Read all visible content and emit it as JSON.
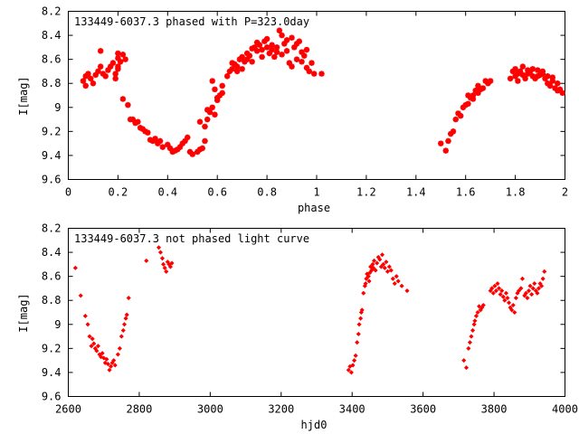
{
  "chart_data": [
    {
      "type": "scatter",
      "title": "133449-6037.3 phased with P=323.0day",
      "xlabel": "phase",
      "ylabel": "I[mag]",
      "xlim": [
        0,
        2
      ],
      "ylim": [
        9.6,
        8.2
      ],
      "y_inverted": true,
      "grid": false,
      "marker": "star",
      "color": "#ff0000",
      "x_ticks": [
        "0",
        "0.2",
        "0.4",
        "0.6",
        "0.8",
        "1",
        "1.2",
        "1.4",
        "1.6",
        "1.8",
        "2"
      ],
      "y_ticks": [
        "8.2",
        "8.4",
        "8.6",
        "8.8",
        "9",
        "9.2",
        "9.4",
        "9.6"
      ],
      "x_tick_values": [
        0,
        0.2,
        0.4,
        0.6,
        0.8,
        1,
        1.2,
        1.4,
        1.6,
        1.8,
        2
      ],
      "y_tick_values": [
        8.2,
        8.4,
        8.6,
        8.8,
        9,
        9.2,
        9.4,
        9.6
      ],
      "points": [
        [
          0.06,
          8.78
        ],
        [
          0.07,
          8.74
        ],
        [
          0.07,
          8.82
        ],
        [
          0.08,
          8.72
        ],
        [
          0.09,
          8.76
        ],
        [
          0.1,
          8.8
        ],
        [
          0.11,
          8.73
        ],
        [
          0.12,
          8.7
        ],
        [
          0.13,
          8.66
        ],
        [
          0.13,
          8.53
        ],
        [
          0.14,
          8.72
        ],
        [
          0.15,
          8.74
        ],
        [
          0.16,
          8.69
        ],
        [
          0.17,
          8.66
        ],
        [
          0.18,
          8.63
        ],
        [
          0.19,
          8.72
        ],
        [
          0.19,
          8.76
        ],
        [
          0.2,
          8.68
        ],
        [
          0.21,
          8.62
        ],
        [
          0.22,
          8.56
        ],
        [
          0.23,
          8.6
        ],
        [
          0.2,
          8.55
        ],
        [
          0.2,
          8.59
        ],
        [
          0.2,
          8.66
        ],
        [
          0.22,
          8.93
        ],
        [
          0.24,
          8.98
        ],
        [
          0.25,
          9.1
        ],
        [
          0.26,
          9.1
        ],
        [
          0.27,
          9.13
        ],
        [
          0.28,
          9.12
        ],
        [
          0.29,
          9.17
        ],
        [
          0.3,
          9.18
        ],
        [
          0.31,
          9.2
        ],
        [
          0.32,
          9.21
        ],
        [
          0.33,
          9.27
        ],
        [
          0.34,
          9.28
        ],
        [
          0.35,
          9.26
        ],
        [
          0.36,
          9.3
        ],
        [
          0.37,
          9.28
        ],
        [
          0.38,
          9.33
        ],
        [
          0.4,
          9.31
        ],
        [
          0.41,
          9.34
        ],
        [
          0.42,
          9.37
        ],
        [
          0.43,
          9.36
        ],
        [
          0.44,
          9.35
        ],
        [
          0.45,
          9.33
        ],
        [
          0.46,
          9.3
        ],
        [
          0.47,
          9.28
        ],
        [
          0.48,
          9.25
        ],
        [
          0.49,
          9.37
        ],
        [
          0.5,
          9.39
        ],
        [
          0.52,
          9.37
        ],
        [
          0.53,
          9.35
        ],
        [
          0.54,
          9.34
        ],
        [
          0.55,
          9.28
        ],
        [
          0.56,
          9.1
        ],
        [
          0.57,
          9.04
        ],
        [
          0.58,
          9.0
        ],
        [
          0.59,
          9.06
        ],
        [
          0.6,
          8.92
        ],
        [
          0.61,
          8.9
        ],
        [
          0.62,
          8.88
        ],
        [
          0.53,
          9.12
        ],
        [
          0.55,
          9.16
        ],
        [
          0.56,
          9.02
        ],
        [
          0.58,
          8.78
        ],
        [
          0.59,
          8.85
        ],
        [
          0.6,
          8.94
        ],
        [
          0.62,
          8.82
        ],
        [
          0.64,
          8.74
        ],
        [
          0.65,
          8.7
        ],
        [
          0.66,
          8.68
        ],
        [
          0.67,
          8.64
        ],
        [
          0.68,
          8.66
        ],
        [
          0.69,
          8.6
        ],
        [
          0.7,
          8.58
        ],
        [
          0.71,
          8.62
        ],
        [
          0.72,
          8.55
        ],
        [
          0.73,
          8.57
        ],
        [
          0.74,
          8.51
        ],
        [
          0.75,
          8.5
        ],
        [
          0.76,
          8.46
        ],
        [
          0.77,
          8.48
        ],
        [
          0.78,
          8.52
        ],
        [
          0.79,
          8.45
        ],
        [
          0.8,
          8.43
        ],
        [
          0.81,
          8.55
        ],
        [
          0.82,
          8.52
        ],
        [
          0.83,
          8.58
        ],
        [
          0.84,
          8.5
        ],
        [
          0.85,
          8.36
        ],
        [
          0.86,
          8.4
        ],
        [
          0.87,
          8.47
        ],
        [
          0.88,
          8.53
        ],
        [
          0.89,
          8.63
        ],
        [
          0.9,
          8.66
        ],
        [
          0.91,
          8.5
        ],
        [
          0.92,
          8.47
        ],
        [
          0.93,
          8.45
        ],
        [
          0.94,
          8.54
        ],
        [
          0.95,
          8.57
        ],
        [
          0.96,
          8.67
        ],
        [
          0.97,
          8.7
        ],
        [
          0.98,
          8.63
        ],
        [
          0.99,
          8.72
        ],
        [
          1.02,
          8.72
        ],
        [
          0.66,
          8.63
        ],
        [
          0.68,
          8.7
        ],
        [
          0.7,
          8.68
        ],
        [
          0.72,
          8.6
        ],
        [
          0.74,
          8.62
        ],
        [
          0.76,
          8.53
        ],
        [
          0.78,
          8.58
        ],
        [
          0.8,
          8.5
        ],
        [
          0.82,
          8.48
        ],
        [
          0.84,
          8.54
        ],
        [
          0.86,
          8.56
        ],
        [
          0.88,
          8.44
        ],
        [
          0.9,
          8.42
        ],
        [
          0.92,
          8.6
        ],
        [
          0.94,
          8.62
        ],
        [
          0.96,
          8.52
        ],
        [
          1.5,
          9.3
        ],
        [
          1.52,
          9.36
        ],
        [
          1.53,
          9.28
        ],
        [
          1.54,
          9.22
        ],
        [
          1.55,
          9.2
        ],
        [
          1.56,
          9.1
        ],
        [
          1.57,
          9.05
        ],
        [
          1.58,
          9.07
        ],
        [
          1.59,
          9.0
        ],
        [
          1.6,
          8.98
        ],
        [
          1.61,
          8.97
        ],
        [
          1.62,
          8.92
        ],
        [
          1.63,
          8.9
        ],
        [
          1.64,
          8.86
        ],
        [
          1.65,
          8.82
        ],
        [
          1.66,
          8.85
        ],
        [
          1.67,
          8.84
        ],
        [
          1.68,
          8.78
        ],
        [
          1.69,
          8.8
        ],
        [
          1.7,
          8.78
        ],
        [
          1.61,
          8.9
        ],
        [
          1.63,
          8.93
        ],
        [
          1.65,
          8.88
        ],
        [
          1.78,
          8.76
        ],
        [
          1.79,
          8.7
        ],
        [
          1.8,
          8.74
        ],
        [
          1.8,
          8.68
        ],
        [
          1.81,
          8.72
        ],
        [
          1.82,
          8.7
        ],
        [
          1.83,
          8.66
        ],
        [
          1.84,
          8.76
        ],
        [
          1.85,
          8.72
        ],
        [
          1.86,
          8.7
        ],
        [
          1.87,
          8.74
        ],
        [
          1.88,
          8.76
        ],
        [
          1.89,
          8.69
        ],
        [
          1.9,
          8.73
        ],
        [
          1.91,
          8.72
        ],
        [
          1.92,
          8.76
        ],
        [
          1.93,
          8.8
        ],
        [
          1.94,
          8.82
        ],
        [
          1.95,
          8.78
        ],
        [
          1.96,
          8.84
        ],
        [
          1.97,
          8.86
        ],
        [
          1.98,
          8.85
        ],
        [
          1.99,
          8.88
        ],
        [
          1.81,
          8.78
        ],
        [
          1.83,
          8.73
        ],
        [
          1.85,
          8.69
        ],
        [
          1.87,
          8.68
        ],
        [
          1.89,
          8.74
        ],
        [
          1.91,
          8.7
        ],
        [
          1.93,
          8.74
        ],
        [
          1.95,
          8.75
        ],
        [
          1.97,
          8.8
        ]
      ]
    },
    {
      "type": "scatter",
      "title": "133449-6037.3 not phased light curve",
      "xlabel": "hjd0",
      "ylabel": "I[mag]",
      "xlim": [
        2600,
        4000
      ],
      "ylim": [
        9.6,
        8.2
      ],
      "y_inverted": true,
      "grid": false,
      "marker": "diamond",
      "color": "#ff0000",
      "x_ticks": [
        "2600",
        "2800",
        "3000",
        "3200",
        "3400",
        "3600",
        "3800",
        "4000"
      ],
      "y_ticks": [
        "8.2",
        "8.4",
        "8.6",
        "8.8",
        "9",
        "9.2",
        "9.4",
        "9.6"
      ],
      "x_tick_values": [
        2600,
        2800,
        3000,
        3200,
        3400,
        3600,
        3800,
        4000
      ],
      "y_tick_values": [
        8.2,
        8.4,
        8.6,
        8.8,
        9,
        9.2,
        9.4,
        9.6
      ],
      "points": [
        [
          2620,
          8.53
        ],
        [
          2635,
          8.76
        ],
        [
          2648,
          8.93
        ],
        [
          2655,
          9.0
        ],
        [
          2660,
          9.1
        ],
        [
          2665,
          9.18
        ],
        [
          2668,
          9.12
        ],
        [
          2672,
          9.16
        ],
        [
          2676,
          9.2
        ],
        [
          2680,
          9.22
        ],
        [
          2684,
          9.18
        ],
        [
          2688,
          9.25
        ],
        [
          2692,
          9.27
        ],
        [
          2696,
          9.24
        ],
        [
          2700,
          9.28
        ],
        [
          2704,
          9.32
        ],
        [
          2708,
          9.29
        ],
        [
          2712,
          9.33
        ],
        [
          2716,
          9.38
        ],
        [
          2720,
          9.35
        ],
        [
          2724,
          9.32
        ],
        [
          2728,
          9.3
        ],
        [
          2732,
          9.34
        ],
        [
          2740,
          9.25
        ],
        [
          2745,
          9.2
        ],
        [
          2750,
          9.1
        ],
        [
          2755,
          9.05
        ],
        [
          2758,
          9.0
        ],
        [
          2762,
          8.95
        ],
        [
          2765,
          8.92
        ],
        [
          2770,
          8.78
        ],
        [
          2820,
          8.47
        ],
        [
          2855,
          8.36
        ],
        [
          2860,
          8.4
        ],
        [
          2865,
          8.45
        ],
        [
          2868,
          8.5
        ],
        [
          2872,
          8.53
        ],
        [
          2876,
          8.56
        ],
        [
          2880,
          8.48
        ],
        [
          2884,
          8.5
        ],
        [
          2888,
          8.52
        ],
        [
          2892,
          8.49
        ],
        [
          3390,
          9.38
        ],
        [
          3394,
          9.35
        ],
        [
          3398,
          9.4
        ],
        [
          3402,
          9.34
        ],
        [
          3406,
          9.3
        ],
        [
          3410,
          9.26
        ],
        [
          3414,
          9.15
        ],
        [
          3418,
          9.08
        ],
        [
          3420,
          9.0
        ],
        [
          3424,
          8.95
        ],
        [
          3426,
          8.9
        ],
        [
          3428,
          8.88
        ],
        [
          3432,
          8.74
        ],
        [
          3436,
          8.68
        ],
        [
          3438,
          8.66
        ],
        [
          3440,
          8.62
        ],
        [
          3442,
          8.58
        ],
        [
          3446,
          8.6
        ],
        [
          3448,
          8.64
        ],
        [
          3450,
          8.57
        ],
        [
          3452,
          8.52
        ],
        [
          3455,
          8.55
        ],
        [
          3458,
          8.5
        ],
        [
          3460,
          8.53
        ],
        [
          3462,
          8.47
        ],
        [
          3466,
          8.55
        ],
        [
          3470,
          8.49
        ],
        [
          3474,
          8.44
        ],
        [
          3478,
          8.46
        ],
        [
          3482,
          8.52
        ],
        [
          3485,
          8.42
        ],
        [
          3488,
          8.5
        ],
        [
          3492,
          8.53
        ],
        [
          3496,
          8.48
        ],
        [
          3500,
          8.56
        ],
        [
          3505,
          8.52
        ],
        [
          3510,
          8.55
        ],
        [
          3515,
          8.62
        ],
        [
          3520,
          8.66
        ],
        [
          3525,
          8.6
        ],
        [
          3530,
          8.64
        ],
        [
          3540,
          8.68
        ],
        [
          3555,
          8.72
        ],
        [
          3715,
          9.3
        ],
        [
          3722,
          9.36
        ],
        [
          3728,
          9.2
        ],
        [
          3732,
          9.15
        ],
        [
          3736,
          9.1
        ],
        [
          3740,
          9.05
        ],
        [
          3744,
          9.0
        ],
        [
          3746,
          8.97
        ],
        [
          3750,
          8.93
        ],
        [
          3754,
          8.9
        ],
        [
          3758,
          8.85
        ],
        [
          3762,
          8.88
        ],
        [
          3766,
          8.86
        ],
        [
          3770,
          8.84
        ],
        [
          3790,
          8.72
        ],
        [
          3794,
          8.7
        ],
        [
          3798,
          8.74
        ],
        [
          3802,
          8.68
        ],
        [
          3806,
          8.72
        ],
        [
          3810,
          8.66
        ],
        [
          3814,
          8.7
        ],
        [
          3818,
          8.75
        ],
        [
          3822,
          8.72
        ],
        [
          3826,
          8.77
        ],
        [
          3830,
          8.8
        ],
        [
          3834,
          8.74
        ],
        [
          3838,
          8.78
        ],
        [
          3842,
          8.82
        ],
        [
          3846,
          8.86
        ],
        [
          3850,
          8.88
        ],
        [
          3854,
          8.84
        ],
        [
          3858,
          8.9
        ],
        [
          3862,
          8.78
        ],
        [
          3866,
          8.74
        ],
        [
          3870,
          8.72
        ],
        [
          3876,
          8.7
        ],
        [
          3880,
          8.62
        ],
        [
          3886,
          8.76
        ],
        [
          3890,
          8.74
        ],
        [
          3894,
          8.78
        ],
        [
          3898,
          8.72
        ],
        [
          3902,
          8.68
        ],
        [
          3906,
          8.75
        ],
        [
          3910,
          8.7
        ],
        [
          3914,
          8.66
        ],
        [
          3918,
          8.72
        ],
        [
          3922,
          8.74
        ],
        [
          3926,
          8.7
        ],
        [
          3930,
          8.66
        ],
        [
          3934,
          8.68
        ],
        [
          3938,
          8.62
        ],
        [
          3942,
          8.56
        ]
      ]
    }
  ]
}
